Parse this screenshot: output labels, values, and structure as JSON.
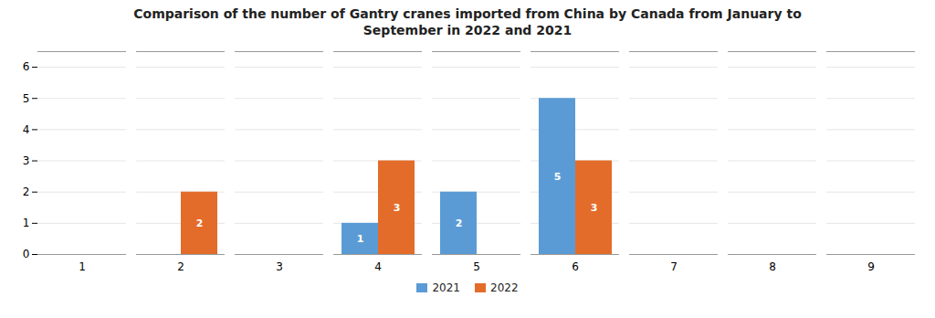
{
  "chart_data": {
    "type": "bar",
    "title": "Comparison of the number of Gantry cranes imported from China by Canada from January to\nSeptember in 2022 and 2021",
    "categories": [
      1,
      2,
      3,
      4,
      5,
      6,
      7,
      8,
      9
    ],
    "series": [
      {
        "name": "2021",
        "color": "#5b9bd5",
        "values": [
          0,
          0,
          0,
          1,
          2,
          5,
          0,
          0,
          0
        ]
      },
      {
        "name": "2022",
        "color": "#e36c2a",
        "values": [
          0,
          2,
          0,
          3,
          0,
          3,
          0,
          0,
          0
        ]
      }
    ],
    "ylim": [
      0,
      6.5
    ],
    "yticks": [
      0,
      1,
      2,
      3,
      4,
      5,
      6
    ],
    "grid": true,
    "data_labels": true,
    "legend": "bottom"
  }
}
